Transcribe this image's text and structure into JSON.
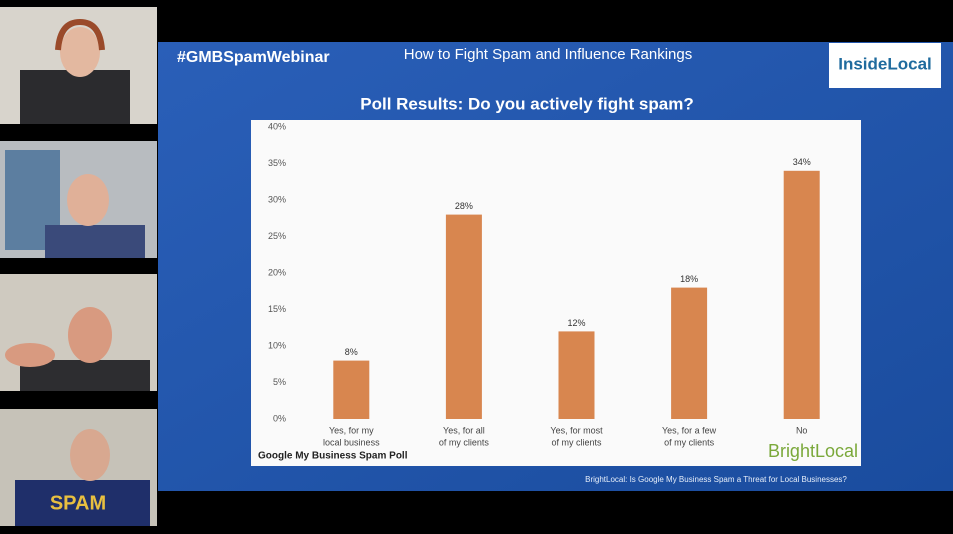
{
  "slide": {
    "hashtag": "#GMBSpamWebinar",
    "title": "How to Fight Spam and Influence Rankings",
    "logo": "InsideLocal",
    "chart_footer": "Google My Business Spam Poll",
    "chart_brand": "BrightLocal",
    "source": "BrightLocal: Is Google My Business Spam a Threat for Local Businesses?"
  },
  "participants": [
    {
      "shirt": "SPAM"
    }
  ],
  "chart_data": {
    "type": "bar",
    "title": "Poll Results: Do you actively fight spam?",
    "categories": [
      [
        "Yes, for my",
        "local business"
      ],
      [
        "Yes, for all",
        "of my clients"
      ],
      [
        "Yes, for most",
        "of my clients"
      ],
      [
        "Yes, for a few",
        "of my clients"
      ],
      [
        "No"
      ]
    ],
    "values": [
      8,
      28,
      12,
      18,
      34
    ],
    "value_labels": [
      "8%",
      "28%",
      "12%",
      "18%",
      "34%"
    ],
    "color": "#d8864f",
    "ylim": [
      0,
      40
    ],
    "yticks": [
      {
        "value": 0,
        "label": "0%"
      },
      {
        "value": 5,
        "label": "5%"
      },
      {
        "value": 10,
        "label": "10%"
      },
      {
        "value": 15,
        "label": "15%"
      },
      {
        "value": 20,
        "label": "20%"
      },
      {
        "value": 25,
        "label": "25%"
      },
      {
        "value": 30,
        "label": "30%"
      },
      {
        "value": 35,
        "label": "35%"
      },
      {
        "value": 40,
        "label": "40%"
      }
    ],
    "grid": false
  }
}
